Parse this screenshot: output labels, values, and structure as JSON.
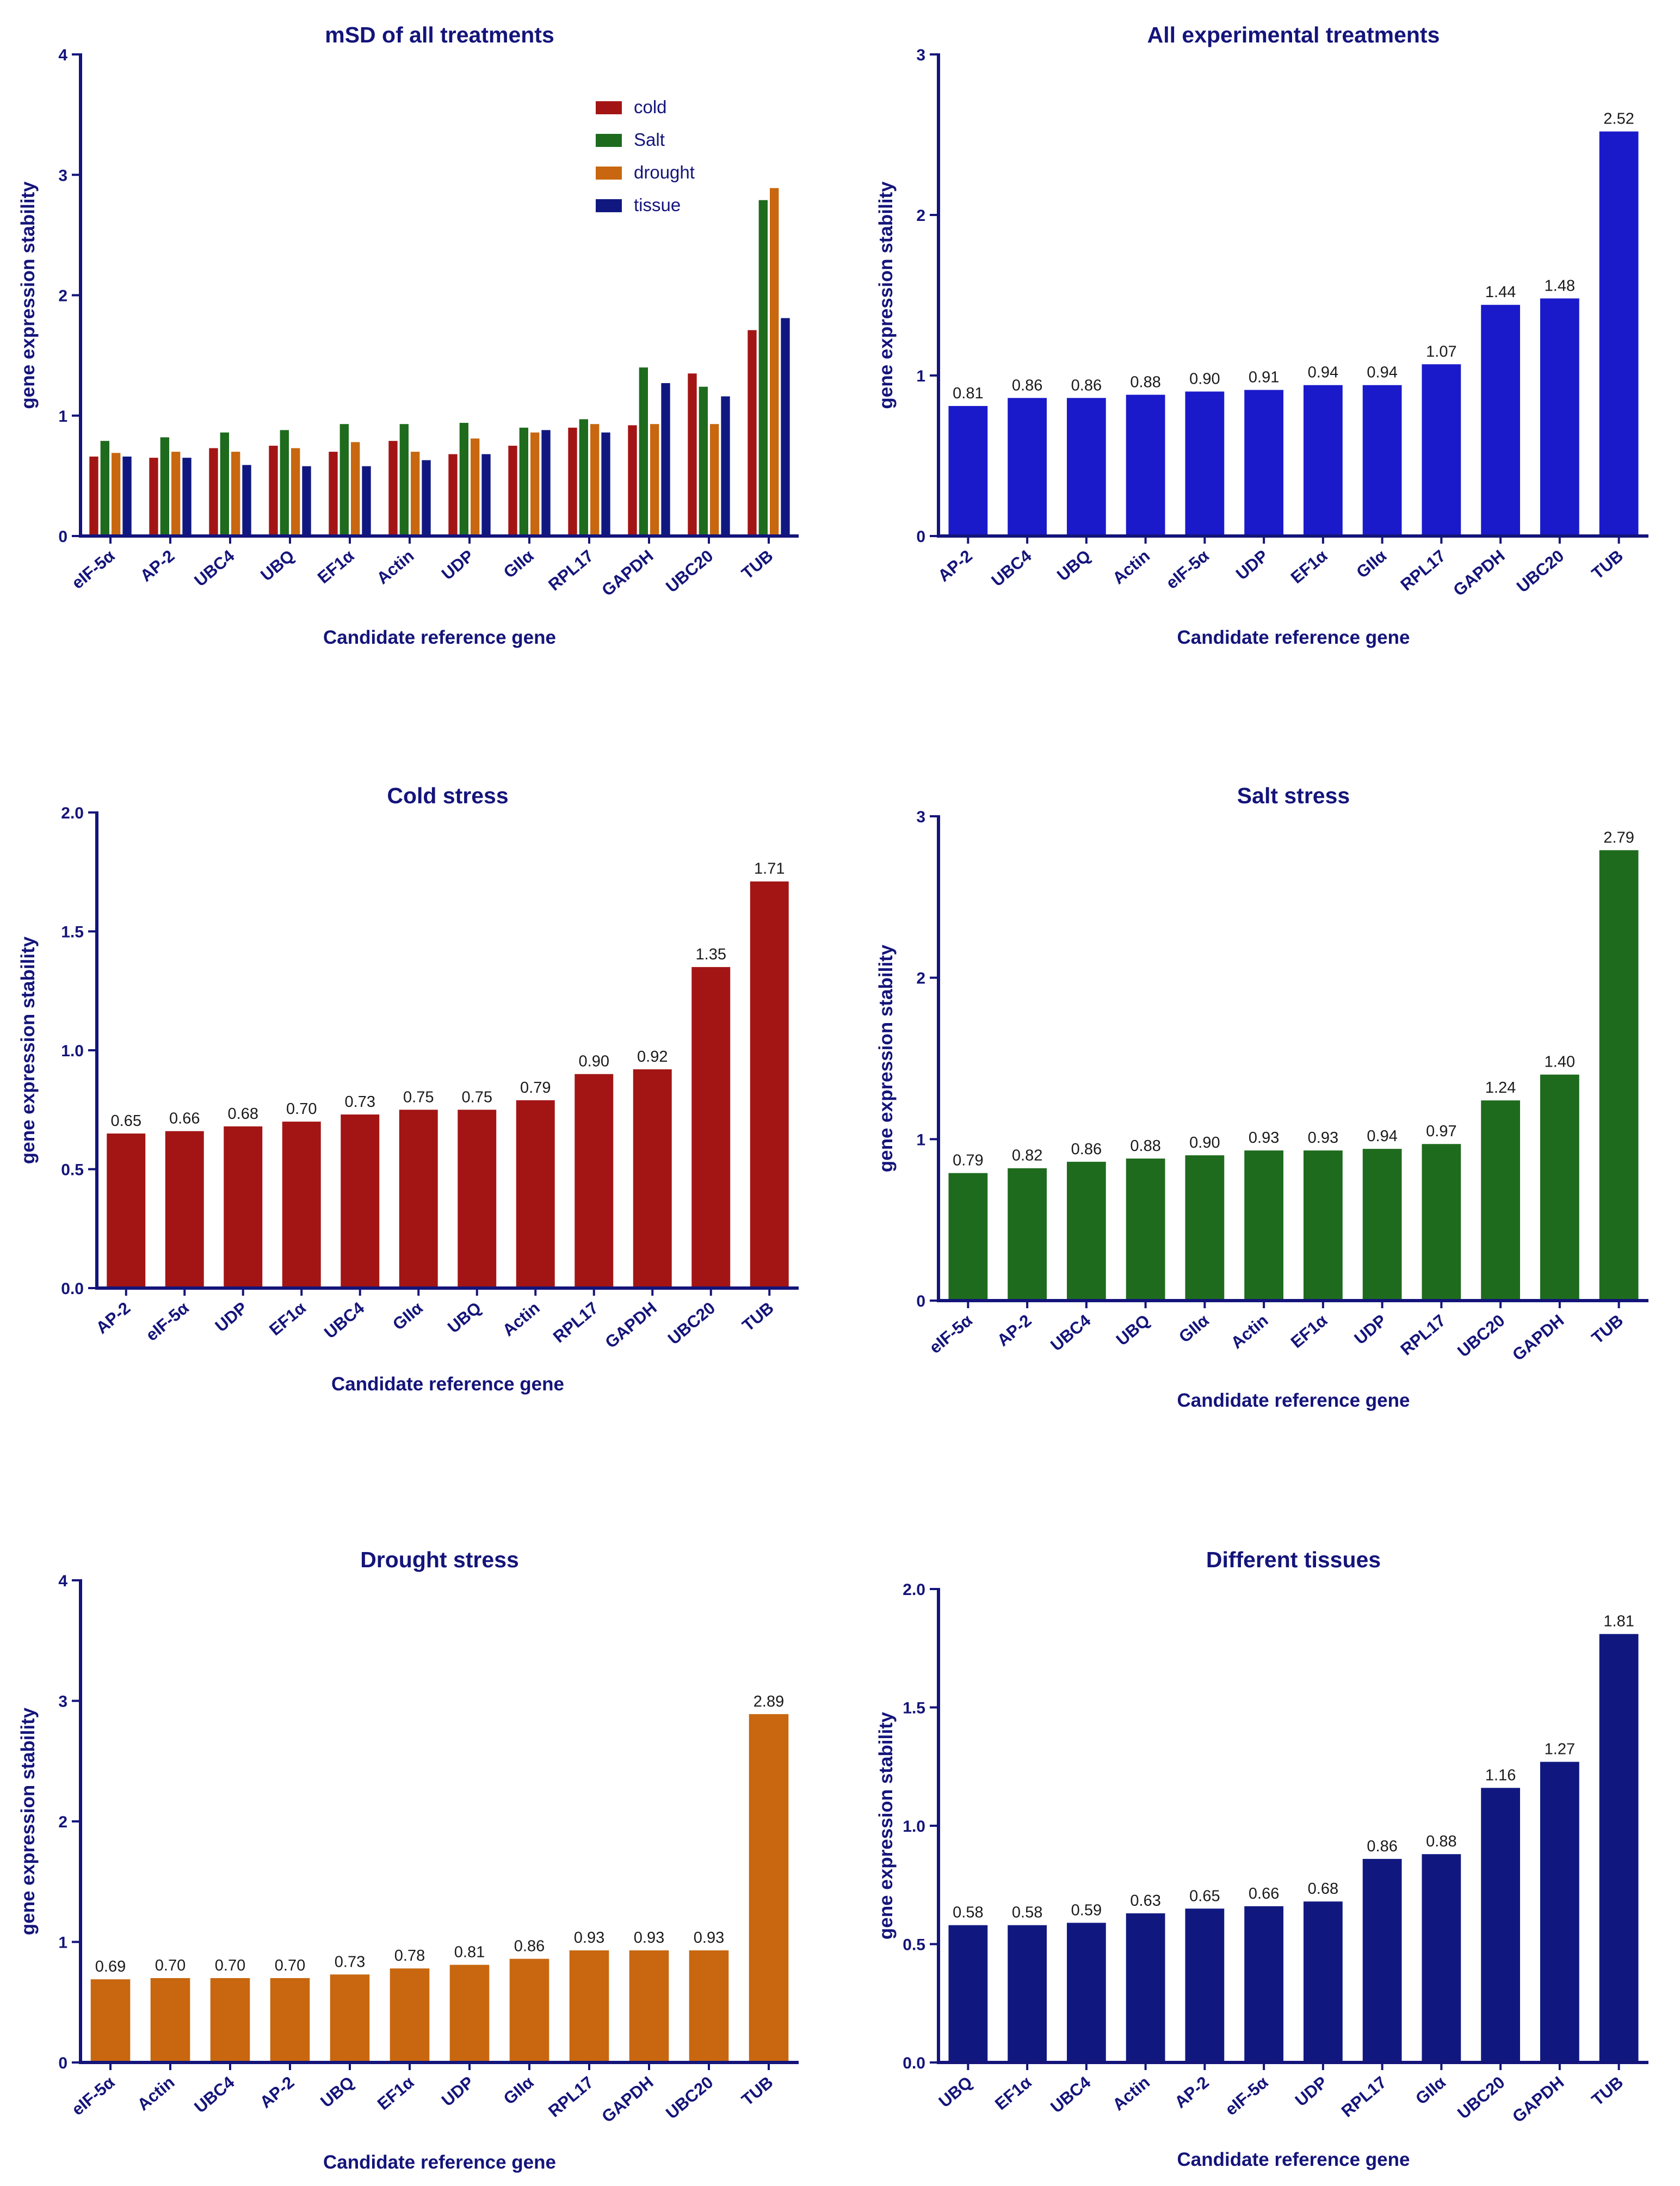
{
  "chart_data": [
    {
      "id": "msd",
      "type": "bar",
      "title": "mSD of all treatments",
      "xlabel": "Candidate reference gene",
      "ylabel": "gene expression stability",
      "ylim": [
        0,
        4
      ],
      "yticks": [
        "0",
        "1",
        "2",
        "3",
        "4"
      ],
      "categories": [
        "eIF-5α",
        "AP-2",
        "UBC4",
        "UBQ",
        "EF1α",
        "Actin",
        "UDP",
        "GIIα",
        "RPL17",
        "GAPDH",
        "UBC20",
        "TUB"
      ],
      "legend_position": "top-right",
      "series": [
        {
          "name": "cold",
          "color": "#a31515",
          "values": [
            0.66,
            0.65,
            0.73,
            0.75,
            0.7,
            0.79,
            0.68,
            0.75,
            0.9,
            0.92,
            1.35,
            1.71
          ]
        },
        {
          "name": "Salt",
          "color": "#1e6b1e",
          "values": [
            0.79,
            0.82,
            0.86,
            0.88,
            0.93,
            0.93,
            0.94,
            0.9,
            0.97,
            1.4,
            1.24,
            2.79
          ]
        },
        {
          "name": "drought",
          "color": "#c8670f",
          "values": [
            0.69,
            0.7,
            0.7,
            0.73,
            0.78,
            0.7,
            0.81,
            0.86,
            0.93,
            0.93,
            0.93,
            2.89
          ]
        },
        {
          "name": "tissue",
          "color": "#101880",
          "values": [
            0.66,
            0.65,
            0.59,
            0.58,
            0.58,
            0.63,
            0.68,
            0.88,
            0.86,
            1.27,
            1.16,
            1.81
          ]
        }
      ]
    },
    {
      "id": "all",
      "type": "bar",
      "title": "All experimental treatments",
      "xlabel": "Candidate reference gene",
      "ylabel": "gene expression stability",
      "ylim": [
        0,
        3
      ],
      "yticks": [
        "0",
        "1",
        "2",
        "3"
      ],
      "color": "#1a1acb",
      "categories": [
        "AP-2",
        "UBC4",
        "UBQ",
        "Actin",
        "eIF-5α",
        "UDP",
        "EF1α",
        "GIIα",
        "RPL17",
        "GAPDH",
        "UBC20",
        "TUB"
      ],
      "values": [
        0.81,
        0.86,
        0.86,
        0.88,
        0.9,
        0.91,
        0.94,
        0.94,
        1.07,
        1.44,
        1.48,
        2.52
      ],
      "labels": [
        "0.81",
        "0.86",
        "0.86",
        "0.88",
        "0.90",
        "0.91",
        "0.94",
        "0.94",
        "1.07",
        "1.44",
        "1.48",
        "2.52"
      ]
    },
    {
      "id": "cold",
      "type": "bar",
      "title": "Cold stress",
      "xlabel": "Candidate reference gene",
      "ylabel": "gene expression stability",
      "ylim": [
        0,
        2
      ],
      "yticks": [
        "0.0",
        "0.5",
        "1.0",
        "1.5",
        "2.0"
      ],
      "color": "#a31515",
      "categories": [
        "AP-2",
        "eIF-5α",
        "UDP",
        "EF1α",
        "UBC4",
        "GIIα",
        "UBQ",
        "Actin",
        "RPL17",
        "GAPDH",
        "UBC20",
        "TUB"
      ],
      "values": [
        0.65,
        0.66,
        0.68,
        0.7,
        0.73,
        0.75,
        0.75,
        0.79,
        0.9,
        0.92,
        1.35,
        1.71
      ],
      "labels": [
        "0.65",
        "0.66",
        "0.68",
        "0.70",
        "0.73",
        "0.75",
        "0.75",
        "0.79",
        "0.90",
        "0.92",
        "1.35",
        "1.71"
      ]
    },
    {
      "id": "salt",
      "type": "bar",
      "title": "Salt stress",
      "xlabel": "Candidate reference gene",
      "ylabel": "gene expression stability",
      "ylim": [
        0,
        3
      ],
      "yticks": [
        "0",
        "1",
        "2",
        "3"
      ],
      "color": "#1e6b1e",
      "categories": [
        "eIF-5α",
        "AP-2",
        "UBC4",
        "UBQ",
        "GIIα",
        "Actin",
        "EF1α",
        "UDP",
        "RPL17",
        "UBC20",
        "GAPDH",
        "TUB"
      ],
      "values": [
        0.79,
        0.82,
        0.86,
        0.88,
        0.9,
        0.93,
        0.93,
        0.94,
        0.97,
        1.24,
        1.4,
        2.79
      ],
      "labels": [
        "0.79",
        "0.82",
        "0.86",
        "0.88",
        "0.90",
        "0.93",
        "0.93",
        "0.94",
        "0.97",
        "1.24",
        "1.40",
        "2.79"
      ]
    },
    {
      "id": "drought",
      "type": "bar",
      "title": "Drought stress",
      "xlabel": "Candidate reference gene",
      "ylabel": "gene expression stability",
      "ylim": [
        0,
        4
      ],
      "yticks": [
        "0",
        "1",
        "2",
        "3",
        "4"
      ],
      "color": "#c8670f",
      "categories": [
        "eIF-5α",
        "Actin",
        "UBC4",
        "AP-2",
        "UBQ",
        "EF1α",
        "UDP",
        "GIIα",
        "RPL17",
        "GAPDH",
        "UBC20",
        "TUB"
      ],
      "values": [
        0.69,
        0.7,
        0.7,
        0.7,
        0.73,
        0.78,
        0.81,
        0.86,
        0.93,
        0.93,
        0.93,
        2.89
      ],
      "labels": [
        "0.69",
        "0.70",
        "0.70",
        "0.70",
        "0.73",
        "0.78",
        "0.81",
        "0.86",
        "0.93",
        "0.93",
        "0.93",
        "2.89"
      ]
    },
    {
      "id": "tissue",
      "type": "bar",
      "title": "Different tissues",
      "xlabel": "Candidate reference gene",
      "ylabel": "gene expression stability",
      "ylim": [
        0,
        2
      ],
      "yticks": [
        "0.0",
        "0.5",
        "1.0",
        "1.5",
        "2.0"
      ],
      "color": "#101880",
      "categories": [
        "UBQ",
        "EF1α",
        "UBC4",
        "Actin",
        "AP-2",
        "eIF-5α",
        "UDP",
        "RPL17",
        "GIIα",
        "UBC20",
        "GAPDH",
        "TUB"
      ],
      "values": [
        0.58,
        0.58,
        0.59,
        0.63,
        0.65,
        0.66,
        0.68,
        0.86,
        0.88,
        1.16,
        1.27,
        1.81
      ],
      "labels": [
        "0.58",
        "0.58",
        "0.59",
        "0.63",
        "0.65",
        "0.66",
        "0.68",
        "0.86",
        "0.88",
        "1.16",
        "1.27",
        "1.81"
      ]
    }
  ]
}
